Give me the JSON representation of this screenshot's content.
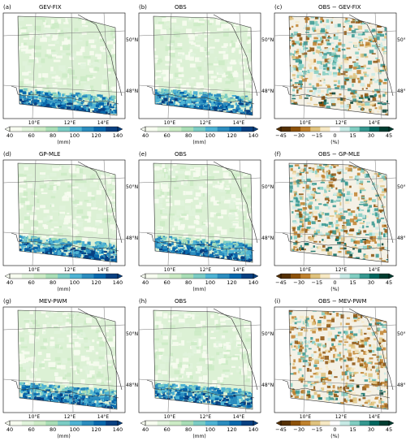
{
  "panels": [
    {
      "id": "a",
      "label": "(a)",
      "title": "GEV-FIX",
      "kind": "seq"
    },
    {
      "id": "b",
      "label": "(b)",
      "title": "OBS",
      "kind": "seq"
    },
    {
      "id": "c",
      "label": "(c)",
      "title": "OBS − GEV-FIX",
      "kind": "div"
    },
    {
      "id": "d",
      "label": "(d)",
      "title": "GP-MLE",
      "kind": "seq"
    },
    {
      "id": "e",
      "label": "(e)",
      "title": "OBS",
      "kind": "seq"
    },
    {
      "id": "f",
      "label": "(f)",
      "title": "OBS − GP-MLE",
      "kind": "div"
    },
    {
      "id": "g",
      "label": "(g)",
      "title": "MEV-PWM",
      "kind": "seq"
    },
    {
      "id": "h",
      "label": "(h)",
      "title": "OBS",
      "kind": "seq"
    },
    {
      "id": "i",
      "label": "(i)",
      "title": "OBS − MEV-PWM",
      "kind": "div"
    }
  ],
  "axis_labels": {
    "lon": [
      "10°E",
      "12°E",
      "14°E"
    ],
    "lat": [
      "50°N",
      "48°N"
    ]
  },
  "colorbars": {
    "seq": {
      "unit": "(mm)",
      "ticks": [
        "40",
        "60",
        "80",
        "100",
        "120",
        "140"
      ],
      "colors": [
        "#f7fcf0",
        "#e0f3db",
        "#ccebc5",
        "#a8ddb5",
        "#7bccc4",
        "#4eb3d3",
        "#2b8cbe",
        "#0868ac",
        "#084081"
      ]
    },
    "div": {
      "unit": "(%)",
      "ticks": [
        "−45",
        "−30",
        "−15",
        "0",
        "15",
        "30",
        "45"
      ],
      "colors": [
        "#543005",
        "#8c510a",
        "#bf812d",
        "#dfc27d",
        "#f6e8c3",
        "#ffffff",
        "#c7eae5",
        "#80cdc1",
        "#35978f",
        "#01665e",
        "#003c30"
      ]
    }
  }
}
